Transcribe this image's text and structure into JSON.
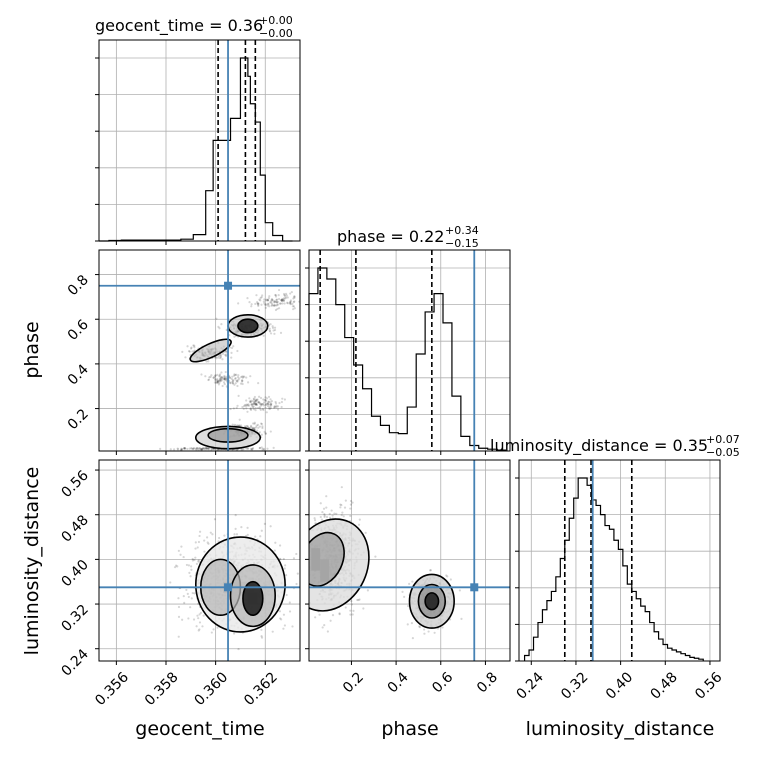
{
  "chart_data": {
    "type": "corner",
    "parameters": [
      "geocent_time",
      "phase",
      "luminosity_distance"
    ],
    "titles": [
      {
        "param": "geocent_time",
        "text": "geocent_time = 0.36",
        "plus": "+0.00",
        "minus": "−0.00"
      },
      {
        "param": "phase",
        "text": "phase = 0.22",
        "plus": "+0.34",
        "minus": "−0.15"
      },
      {
        "param": "luminosity_distance",
        "text": "luminosity_distance = 0.35",
        "plus": "+0.07",
        "minus": "−0.05"
      }
    ],
    "axis_labels": {
      "bottom": [
        "geocent_time",
        "phase",
        "luminosity_distance"
      ],
      "left": [
        "phase",
        "luminosity_distance"
      ]
    },
    "ranges": {
      "geocent_time": [
        0.3553,
        0.3634
      ],
      "phase": [
        0.01,
        0.91
      ],
      "luminosity_distance": [
        0.218,
        0.578
      ]
    },
    "ticks": {
      "geocent_time": [
        "0.356",
        "0.358",
        "0.360",
        "0.362"
      ],
      "phase": [
        "0.2",
        "0.4",
        "0.6",
        "0.8"
      ],
      "luminosity_distance": [
        "0.24",
        "0.32",
        "0.40",
        "0.48",
        "0.56"
      ]
    },
    "phase_left_ticks": [
      "0.2",
      "0.4",
      "0.6",
      "0.8"
    ],
    "truths": {
      "geocent_time": 0.3605,
      "phase": 0.75,
      "luminosity_distance": 0.35
    },
    "quantiles": {
      "geocent_time": [
        0.3601,
        0.3612,
        0.3616
      ],
      "phase": [
        0.06,
        0.22,
        0.56
      ],
      "luminosity_distance": [
        0.3,
        0.347,
        0.42
      ]
    },
    "histograms": {
      "geocent_time": {
        "edges": [
          0.3553,
          0.3557,
          0.3562,
          0.3586,
          0.3591,
          0.3596,
          0.3599,
          0.36,
          0.3606,
          0.361,
          0.3612,
          0.3613,
          0.3614,
          0.3616,
          0.3618,
          0.362,
          0.3623,
          0.3627,
          0.3631
        ],
        "counts": [
          0,
          3,
          5,
          10,
          35,
          275,
          550,
          550,
          670,
          1000,
          1000,
          900,
          750,
          650,
          360,
          100,
          30,
          0
        ]
      },
      "phase": {
        "edges": [
          0.01,
          0.05,
          0.09,
          0.13,
          0.17,
          0.21,
          0.25,
          0.29,
          0.33,
          0.37,
          0.41,
          0.45,
          0.49,
          0.53,
          0.57,
          0.61,
          0.65,
          0.69,
          0.73,
          0.77,
          0.81,
          0.85,
          0.89
        ],
        "counts": [
          860,
          1000,
          940,
          800,
          620,
          470,
          340,
          190,
          140,
          100,
          95,
          240,
          530,
          760,
          860,
          700,
          300,
          80,
          30,
          15,
          10,
          5
        ]
      },
      "luminosity_distance": {
        "edges": [
          0.228,
          0.236,
          0.244,
          0.252,
          0.26,
          0.268,
          0.276,
          0.284,
          0.292,
          0.3,
          0.308,
          0.316,
          0.324,
          0.332,
          0.34,
          0.348,
          0.356,
          0.364,
          0.372,
          0.38,
          0.388,
          0.396,
          0.404,
          0.412,
          0.42,
          0.428,
          0.436,
          0.444,
          0.452,
          0.46,
          0.468,
          0.476,
          0.484,
          0.492,
          0.5,
          0.508,
          0.516,
          0.524,
          0.532,
          0.54,
          0.548
        ],
        "counts": [
          30,
          60,
          130,
          210,
          280,
          330,
          380,
          460,
          560,
          660,
          780,
          890,
          1000,
          1000,
          960,
          880,
          850,
          800,
          740,
          720,
          660,
          610,
          520,
          420,
          380,
          340,
          300,
          270,
          210,
          160,
          120,
          90,
          70,
          60,
          50,
          40,
          30,
          20,
          15,
          10
        ]
      }
    },
    "colors": {
      "truth": "#4682b4",
      "line": "#000000",
      "grid": "#b0b0b0"
    }
  }
}
